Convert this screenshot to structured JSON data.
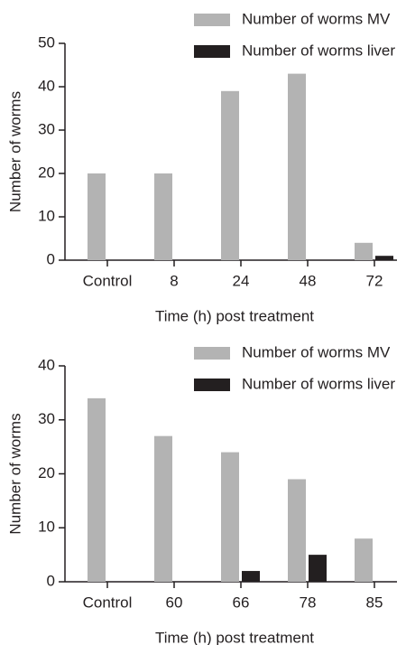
{
  "chart_data": [
    {
      "type": "bar",
      "xlabel": "Time (h) post treatment",
      "ylabel": "Number of worms",
      "categories": [
        "Control",
        "8",
        "24",
        "48",
        "72"
      ],
      "series": [
        {
          "name": "Number of worms MV",
          "color": "#b3b3b3",
          "values": [
            20,
            20,
            39,
            43,
            4
          ]
        },
        {
          "name": "Number of worms liver",
          "color": "#231f20",
          "values": [
            0,
            0,
            0,
            0,
            1
          ]
        }
      ],
      "ylim": [
        0,
        50
      ],
      "yticks": [
        0,
        10,
        20,
        30,
        40,
        50
      ],
      "legend": "top-right"
    },
    {
      "type": "bar",
      "xlabel": "Time (h) post treatment",
      "ylabel": "Number of worms",
      "categories": [
        "Control",
        "60",
        "66",
        "78",
        "85"
      ],
      "series": [
        {
          "name": "Number of worms MV",
          "color": "#b3b3b3",
          "values": [
            34,
            27,
            24,
            19,
            8
          ]
        },
        {
          "name": "Number of worms liver",
          "color": "#231f20",
          "values": [
            0,
            0,
            2,
            5,
            0
          ]
        }
      ],
      "ylim": [
        0,
        40
      ],
      "yticks": [
        0,
        10,
        20,
        30,
        40
      ],
      "legend": "top-right"
    }
  ]
}
